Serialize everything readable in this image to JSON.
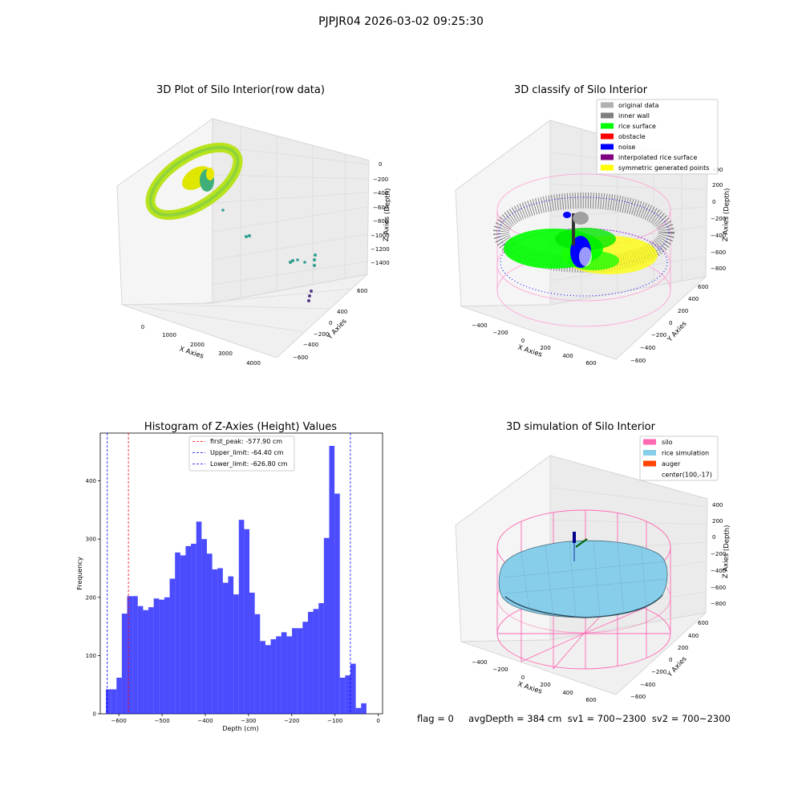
{
  "suptitle": "PJPJR04 2026-03-02 09:25:30",
  "panels": {
    "raw": {
      "title": "3D Plot of Silo Interior(row data)",
      "xlabel": "X Axies",
      "ylabel": "Y Axies",
      "zlabel": "Z Axies (Depth)",
      "xticks": [
        "0",
        "1000",
        "2000",
        "3000",
        "4000"
      ],
      "yticks": [
        "600",
        "400",
        "200",
        "0",
        "−200",
        "−400",
        "−600"
      ],
      "zticks": [
        "0",
        "−200",
        "−400",
        "−600",
        "−800",
        "−1000",
        "−1200",
        "−1400"
      ],
      "colors": {
        "near": "#c8e600",
        "mid": "#44b86e",
        "far": "#46327e"
      }
    },
    "classify": {
      "title": "3D classify of Silo Interior",
      "xlabel": "X Axies",
      "ylabel": "Y Axies",
      "zlabel": "Z Axies (Depth)",
      "xticks": [
        "−400",
        "−200",
        "0",
        "200",
        "400",
        "600"
      ],
      "yticks": [
        "600",
        "400",
        "200",
        "0",
        "−200",
        "−400",
        "−600"
      ],
      "zticks": [
        "400",
        "200",
        "0",
        "−200",
        "−400",
        "−600",
        "−800"
      ],
      "legend": [
        {
          "label": "original data",
          "color": "#b0b0b0"
        },
        {
          "label": "inner wall",
          "color": "#808080"
        },
        {
          "label": "rice surface",
          "color": "#00ff00"
        },
        {
          "label": "obstacle",
          "color": "#ff0000"
        },
        {
          "label": "noise",
          "color": "#0000ff"
        },
        {
          "label": "interpolated rice surface",
          "color": "#800080"
        },
        {
          "label": "symmetric generated points",
          "color": "#ffff00"
        }
      ]
    },
    "sim": {
      "title": "3D simulation of Silo Interior",
      "xlabel": "X Axies",
      "ylabel": "Y Axies",
      "zlabel": "Z Axies (Depth)",
      "xticks": [
        "−400",
        "−200",
        "0",
        "200",
        "400",
        "600"
      ],
      "yticks": [
        "600",
        "400",
        "200",
        "0",
        "−200",
        "−400",
        "−600"
      ],
      "zticks": [
        "400",
        "200",
        "0",
        "−200",
        "−400",
        "−600",
        "−800"
      ],
      "legend": [
        {
          "label": "silo",
          "color": "#ff69b4"
        },
        {
          "label": "rice simulation",
          "color": "#87ceeb"
        },
        {
          "label": "auger",
          "color": "#ff4500"
        },
        {
          "label": "center(100,-17)",
          "color": ""
        }
      ]
    }
  },
  "status": {
    "text": "flag = 0     avgDepth = 384 cm  sv1 = 700~2300  sv2 = 700~2300"
  },
  "chart_data": {
    "type": "bar",
    "title": "Histogram of Z-Axies (Height) Values",
    "xlabel": "Depth (cm)",
    "ylabel": "Frequency",
    "xlim": [
      -643,
      10
    ],
    "ylim": [
      0,
      482
    ],
    "xticks": [
      "−600",
      "−500",
      "−400",
      "−300",
      "−200",
      "−100",
      "0"
    ],
    "yticks": [
      "0",
      "100",
      "200",
      "300",
      "400"
    ],
    "bar_color": "#0000ff",
    "bin_start": -630,
    "bin_width": 12.3,
    "values": [
      42,
      42,
      62,
      172,
      202,
      202,
      185,
      178,
      183,
      198,
      196,
      200,
      232,
      277,
      272,
      288,
      292,
      330,
      300,
      275,
      248,
      250,
      225,
      236,
      205,
      333,
      317,
      208,
      171,
      125,
      118,
      128,
      133,
      140,
      133,
      147,
      147,
      158,
      175,
      180,
      190,
      302,
      460,
      378,
      62,
      66,
      86,
      10,
      18
    ],
    "lines": [
      {
        "label": "first_peak: -577.90 cm",
        "x": -577.9,
        "color": "#ff0000"
      },
      {
        "label": "Upper_limit: -64.40 cm",
        "x": -64.4,
        "color": "#0000ff"
      },
      {
        "label": "Lower_limit: -626.80 cm",
        "x": -626.8,
        "color": "#0000ff"
      }
    ]
  }
}
